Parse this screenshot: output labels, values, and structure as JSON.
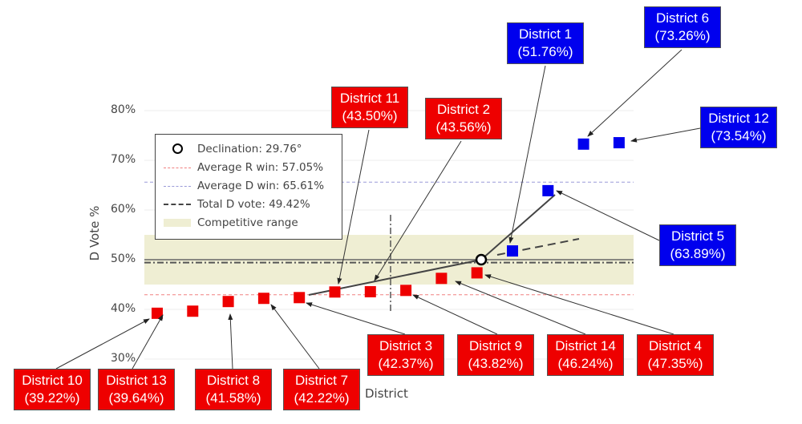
{
  "chart_data": {
    "type": "scatter",
    "xlabel": "District",
    "ylabel": "D Vote %",
    "ylim": [
      30,
      80
    ],
    "yticks": [
      "30%",
      "40%",
      "50%",
      "60%",
      "70%",
      "80%"
    ],
    "grid": true,
    "legend_placement": "upper-left",
    "colors": {
      "R": "#ee0000",
      "D": "#0000ee",
      "competitive": "#efeed3",
      "avg_r_line": "#f08080",
      "avg_d_line": "#9a9ad8"
    },
    "points": [
      {
        "district": "District 10",
        "value": 39.22,
        "party": "R",
        "label": "(39.22%)"
      },
      {
        "district": "District 13",
        "value": 39.64,
        "party": "R",
        "label": "(39.64%)"
      },
      {
        "district": "District 8",
        "value": 41.58,
        "party": "R",
        "label": "(41.58%)"
      },
      {
        "district": "District 7",
        "value": 42.22,
        "party": "R",
        "label": "(42.22%)"
      },
      {
        "district": "District 3",
        "value": 42.37,
        "party": "R",
        "label": "(42.37%)"
      },
      {
        "district": "District 11",
        "value": 43.5,
        "party": "R",
        "label": "(43.50%)"
      },
      {
        "district": "District 2",
        "value": 43.56,
        "party": "R",
        "label": "(43.56%)"
      },
      {
        "district": "District 9",
        "value": 43.82,
        "party": "R",
        "label": "(43.82%)"
      },
      {
        "district": "District 14",
        "value": 46.24,
        "party": "R",
        "label": "(46.24%)"
      },
      {
        "district": "District 4",
        "value": 47.35,
        "party": "R",
        "label": "(47.35%)"
      },
      {
        "district": "District 1",
        "value": 51.76,
        "party": "D",
        "label": "(51.76%)"
      },
      {
        "district": "District 5",
        "value": 63.89,
        "party": "D",
        "label": "(63.89%)"
      },
      {
        "district": "District 6",
        "value": 73.26,
        "party": "D",
        "label": "(73.26%)"
      },
      {
        "district": "District 12",
        "value": 73.54,
        "party": "D",
        "label": "(73.54%)"
      }
    ],
    "reference_lines": {
      "avg_r_win_dvote": 42.95,
      "avg_d_win": 65.61,
      "total_d_vote": 49.42,
      "fifty": 50
    },
    "competitive_range": [
      45,
      55
    ],
    "legend": {
      "declination": "Declination: 29.76°",
      "avg_r": "Average R win: 57.05%",
      "avg_d": "Average D win: 65.61%",
      "total_d": "Total D vote: 49.42%",
      "competitive": "Competitive range"
    }
  }
}
